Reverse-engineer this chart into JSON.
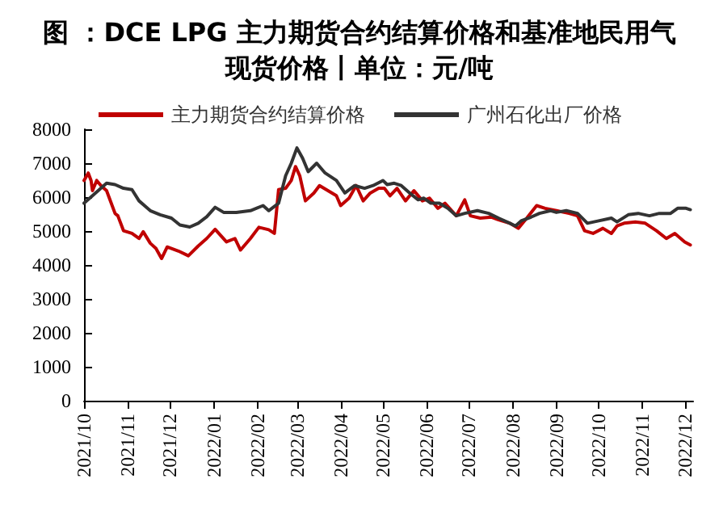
{
  "chart_data": {
    "type": "line",
    "title": "图 ：DCE LPG 主力期货合约结算价格和基准地民用气现货价格丨单位：元/吨",
    "series": [
      {
        "name": "主力期货合约结算价格",
        "color": "#c00000",
        "x": [
          "2021-10-01",
          "2021-10-04",
          "2021-10-06",
          "2021-10-07",
          "2021-10-10",
          "2021-10-13",
          "2021-10-17",
          "2021-10-23",
          "2021-10-25",
          "2021-10-29",
          "2021-11-04",
          "2021-11-09",
          "2021-11-12",
          "2021-11-17",
          "2021-11-21",
          "2021-11-25",
          "2021-11-29",
          "2021-12-07",
          "2021-12-14",
          "2021-12-21",
          "2021-12-27",
          "2022-01-02",
          "2022-01-10",
          "2022-01-16",
          "2022-01-20",
          "2022-01-27",
          "2022-02-02",
          "2022-02-09",
          "2022-02-13",
          "2022-02-16",
          "2022-02-21",
          "2022-02-25",
          "2022-02-28",
          "2022-03-03",
          "2022-03-07",
          "2022-03-13",
          "2022-03-17",
          "2022-03-23",
          "2022-03-29",
          "2022-04-01",
          "2022-04-07",
          "2022-04-12",
          "2022-04-17",
          "2022-04-22",
          "2022-04-28",
          "2022-05-02",
          "2022-05-06",
          "2022-05-11",
          "2022-05-17",
          "2022-05-23",
          "2022-05-29",
          "2022-06-03",
          "2022-06-09",
          "2022-06-14",
          "2022-06-22",
          "2022-06-28",
          "2022-07-02",
          "2022-07-09",
          "2022-07-17",
          "2022-07-22",
          "2022-07-30",
          "2022-08-05",
          "2022-08-11",
          "2022-08-18",
          "2022-08-24",
          "2022-09-01",
          "2022-09-10",
          "2022-09-16",
          "2022-09-21",
          "2022-09-27",
          "2022-10-04",
          "2022-10-10",
          "2022-10-14",
          "2022-10-19",
          "2022-10-27",
          "2022-11-03",
          "2022-11-11",
          "2022-11-18",
          "2022-11-24",
          "2022-12-01",
          "2022-12-05"
        ],
        "values": [
          6490,
          6710,
          6490,
          6190,
          6490,
          6340,
          6190,
          5520,
          5450,
          5010,
          4930,
          4780,
          4980,
          4640,
          4490,
          4190,
          4530,
          4410,
          4270,
          4560,
          4780,
          5050,
          4680,
          4780,
          4440,
          4780,
          5110,
          5040,
          4930,
          6220,
          6260,
          6490,
          6900,
          6630,
          5890,
          6120,
          6340,
          6190,
          6040,
          5750,
          5970,
          6340,
          5890,
          6120,
          6260,
          6260,
          6040,
          6260,
          5890,
          6190,
          5890,
          5970,
          5670,
          5820,
          5450,
          5920,
          5450,
          5380,
          5410,
          5330,
          5230,
          5080,
          5380,
          5750,
          5670,
          5600,
          5520,
          5450,
          5010,
          4930,
          5080,
          4930,
          5150,
          5230,
          5270,
          5230,
          5010,
          4780,
          4930,
          4680,
          4590
        ]
      },
      {
        "name": "广州石化出厂价格",
        "color": "#333333",
        "x": [
          "2021-10-01",
          "2021-10-07",
          "2021-10-17",
          "2021-10-23",
          "2021-10-29",
          "2021-11-04",
          "2021-11-09",
          "2021-11-17",
          "2021-11-24",
          "2021-12-02",
          "2021-12-08",
          "2021-12-15",
          "2021-12-21",
          "2021-12-27",
          "2022-01-02",
          "2022-01-08",
          "2022-01-17",
          "2022-01-27",
          "2022-02-05",
          "2022-02-09",
          "2022-02-16",
          "2022-02-21",
          "2022-02-25",
          "2022-03-01",
          "2022-03-05",
          "2022-03-09",
          "2022-03-15",
          "2022-03-21",
          "2022-03-29",
          "2022-04-04",
          "2022-04-11",
          "2022-04-18",
          "2022-04-24",
          "2022-05-01",
          "2022-05-04",
          "2022-05-09",
          "2022-05-14",
          "2022-05-20",
          "2022-05-26",
          "2022-05-30",
          "2022-06-04",
          "2022-06-10",
          "2022-06-16",
          "2022-06-22",
          "2022-06-28",
          "2022-07-07",
          "2022-07-15",
          "2022-07-22",
          "2022-07-30",
          "2022-08-03",
          "2022-08-07",
          "2022-08-14",
          "2022-08-20",
          "2022-08-28",
          "2022-09-01",
          "2022-09-08",
          "2022-09-16",
          "2022-09-23",
          "2022-10-01",
          "2022-10-10",
          "2022-10-14",
          "2022-10-22",
          "2022-10-29",
          "2022-11-06",
          "2022-11-13",
          "2022-11-21",
          "2022-11-26",
          "2022-12-02",
          "2022-12-05"
        ],
        "values": [
          5820,
          6040,
          6410,
          6370,
          6260,
          6220,
          5890,
          5600,
          5480,
          5380,
          5180,
          5120,
          5230,
          5420,
          5700,
          5550,
          5550,
          5600,
          5750,
          5600,
          5820,
          6630,
          7000,
          7450,
          7150,
          6750,
          7000,
          6710,
          6490,
          6120,
          6340,
          6260,
          6340,
          6490,
          6370,
          6410,
          6340,
          6120,
          5920,
          5970,
          5820,
          5820,
          5670,
          5450,
          5520,
          5600,
          5520,
          5380,
          5230,
          5150,
          5300,
          5410,
          5520,
          5600,
          5550,
          5600,
          5520,
          5230,
          5300,
          5380,
          5270,
          5480,
          5520,
          5450,
          5520,
          5520,
          5670,
          5670,
          5630
        ]
      }
    ],
    "xlim": [
      "2021-10-01",
      "2022-12-07"
    ],
    "xticks": [
      {
        "value": "2021-10-01",
        "label": "2021/10"
      },
      {
        "value": "2021-11-01",
        "label": "2021/11"
      },
      {
        "value": "2021-12-01",
        "label": "2021/12"
      },
      {
        "value": "2022-01-01",
        "label": "2022/01"
      },
      {
        "value": "2022-02-01",
        "label": "2022/02"
      },
      {
        "value": "2022-03-01",
        "label": "2022/03"
      },
      {
        "value": "2022-04-01",
        "label": "2022/04"
      },
      {
        "value": "2022-05-01",
        "label": "2022/05"
      },
      {
        "value": "2022-06-01",
        "label": "2022/06"
      },
      {
        "value": "2022-07-01",
        "label": "2022/07"
      },
      {
        "value": "2022-08-01",
        "label": "2022/08"
      },
      {
        "value": "2022-09-01",
        "label": "2022/09"
      },
      {
        "value": "2022-10-01",
        "label": "2022/10"
      },
      {
        "value": "2022-11-01",
        "label": "2022/11"
      },
      {
        "value": "2022-12-01",
        "label": "2022/12"
      }
    ],
    "ylim": [
      0,
      8000
    ],
    "yticks": [
      0,
      1000,
      2000,
      3000,
      4000,
      5000,
      6000,
      7000,
      8000
    ],
    "grid": false,
    "legend": "top",
    "marker": "none",
    "line_style": "solid"
  }
}
